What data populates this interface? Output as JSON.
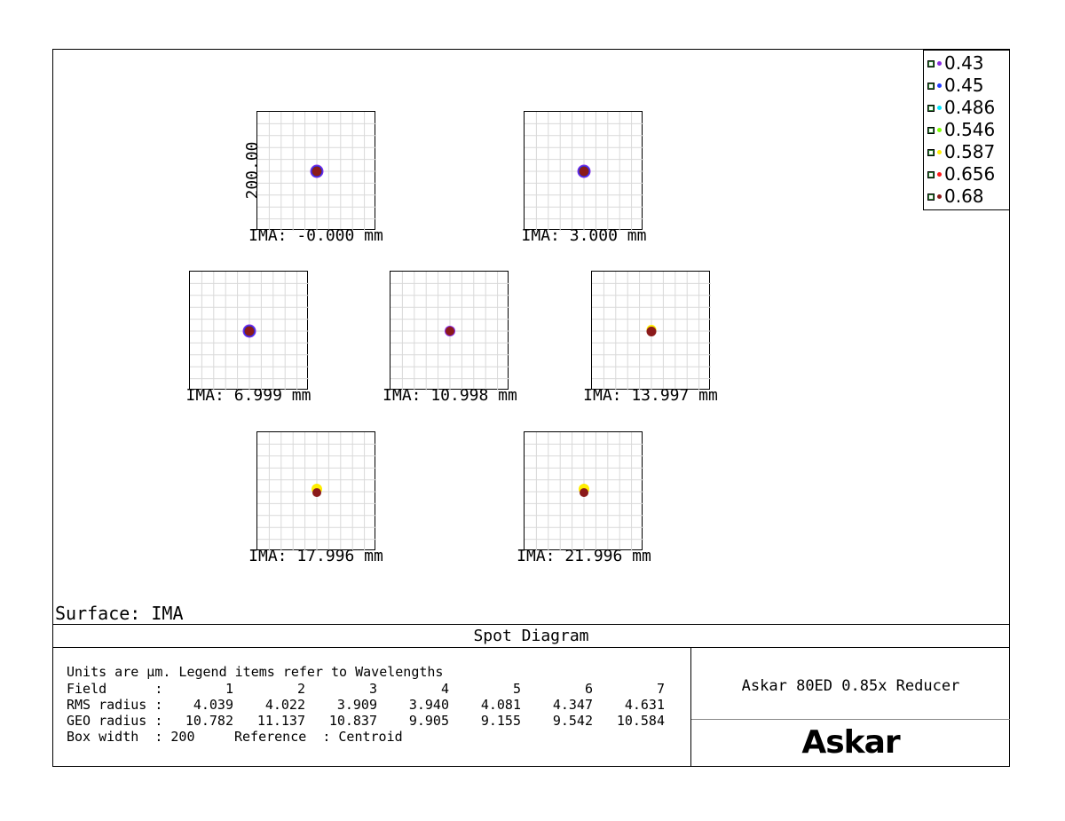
{
  "spot_diagrams": [
    {
      "label": "IMA: -0.000 mm",
      "spot": "main"
    },
    {
      "label": "IMA: 3.000 mm",
      "spot": "main"
    },
    {
      "label": "IMA: 6.999 mm",
      "spot": "main"
    },
    {
      "label": "IMA: 10.998 mm",
      "spot": "small"
    },
    {
      "label": "IMA: 13.997 mm",
      "spot": "small-yellow"
    },
    {
      "label": "IMA: 17.996 mm",
      "spot": "yellow-halo"
    },
    {
      "label": "IMA: 21.996 mm",
      "spot": "yellow-halo"
    }
  ],
  "scale_label": "200.00",
  "legend": [
    {
      "label": "0.43",
      "color": "#8a2be2"
    },
    {
      "label": "0.45",
      "color": "#1f3bff"
    },
    {
      "label": "0.486",
      "color": "#00e5ff"
    },
    {
      "label": "0.546",
      "color": "#7fff00"
    },
    {
      "label": "0.587",
      "color": "#ffee00"
    },
    {
      "label": "0.656",
      "color": "#ff1a1a"
    },
    {
      "label": "0.68",
      "color": "#8b1a1a"
    }
  ],
  "surface_label": "Surface: IMA",
  "title": "Spot Diagram",
  "stats": {
    "units_line": "Units are µm. Legend items refer to Wavelengths",
    "field_label": "Field      :",
    "rms_label": "RMS radius :",
    "geo_label": "GEO radius :",
    "fields": [
      "1",
      "2",
      "3",
      "4",
      "5",
      "6",
      "7"
    ],
    "rms": [
      "4.039",
      "4.022",
      "3.909",
      "3.940",
      "4.081",
      "4.347",
      "4.631"
    ],
    "geo": [
      "10.782",
      "11.137",
      "10.837",
      "9.905",
      "9.155",
      "9.542",
      "10.584"
    ],
    "box_width_label": "Box width  : 200",
    "reference_label": "Reference  : Centroid"
  },
  "lens_name": "Askar 80ED 0.85x Reducer",
  "brand": "Askar"
}
